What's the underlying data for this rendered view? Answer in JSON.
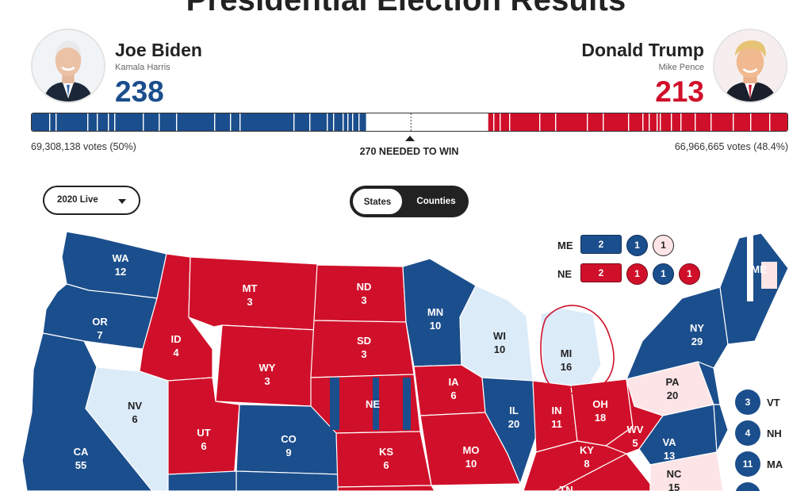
{
  "page": {
    "title": "Presidential Election Results"
  },
  "colors": {
    "dem": "#1b4e8c",
    "rep": "#d0102a",
    "dem_light": "#dcebf8",
    "rep_light": "#fde4e6",
    "annotation": "#d0102a"
  },
  "candidates": {
    "dem": {
      "name": "Joe Biden",
      "running_mate": "Kamala Harris",
      "electoral_votes": "238",
      "votes": "69,308,138 votes (50%)",
      "avatar_icon": "biden-portrait"
    },
    "rep": {
      "name": "Donald Trump",
      "running_mate": "Mike Pence",
      "electoral_votes": "213",
      "votes": "66,966,665 votes (48.4%)",
      "avatar_icon": "trump-portrait"
    }
  },
  "ev_bar": {
    "dem_ev": 238,
    "rep_ev": 213,
    "total_ev": 538,
    "needed_label": "270 NEEDED TO WIN"
  },
  "controls": {
    "year_select": "2020 Live",
    "toggle": {
      "states": "States",
      "counties": "Counties",
      "selected": "States"
    }
  },
  "map": {
    "states": [
      {
        "abbr": "WA",
        "ev": "12"
      },
      {
        "abbr": "OR",
        "ev": "7"
      },
      {
        "abbr": "CA",
        "ev": "55"
      },
      {
        "abbr": "NV",
        "ev": "6"
      },
      {
        "abbr": "ID",
        "ev": "4"
      },
      {
        "abbr": "MT",
        "ev": "3"
      },
      {
        "abbr": "WY",
        "ev": "3"
      },
      {
        "abbr": "UT",
        "ev": "6"
      },
      {
        "abbr": "CO",
        "ev": "9"
      },
      {
        "abbr": "ND",
        "ev": "3"
      },
      {
        "abbr": "SD",
        "ev": "3"
      },
      {
        "abbr": "NE",
        "ev": ""
      },
      {
        "abbr": "KS",
        "ev": "6"
      },
      {
        "abbr": "MN",
        "ev": "10"
      },
      {
        "abbr": "IA",
        "ev": "6"
      },
      {
        "abbr": "MO",
        "ev": "10"
      },
      {
        "abbr": "WI",
        "ev": "10"
      },
      {
        "abbr": "IL",
        "ev": "20"
      },
      {
        "abbr": "MI",
        "ev": "16"
      },
      {
        "abbr": "IN",
        "ev": "11"
      },
      {
        "abbr": "OH",
        "ev": "18"
      },
      {
        "abbr": "KY",
        "ev": "8"
      },
      {
        "abbr": "WV",
        "ev": "5"
      },
      {
        "abbr": "PA",
        "ev": "20"
      },
      {
        "abbr": "VA",
        "ev": "13"
      },
      {
        "abbr": "NY",
        "ev": "29"
      },
      {
        "abbr": "NC",
        "ev": "15"
      },
      {
        "abbr": "TN",
        "ev": ""
      },
      {
        "abbr": "ME",
        "ev": ""
      }
    ],
    "districts": {
      "me": {
        "label": "ME",
        "at_large": "2",
        "cd": [
          "1",
          "1"
        ]
      },
      "ne": {
        "label": "NE",
        "at_large": "2",
        "cd": [
          "1",
          "1",
          "1"
        ]
      }
    },
    "small_states": [
      {
        "ev": "3",
        "abbr": "VT"
      },
      {
        "ev": "4",
        "abbr": "NH"
      },
      {
        "ev": "11",
        "abbr": "MA"
      }
    ]
  }
}
